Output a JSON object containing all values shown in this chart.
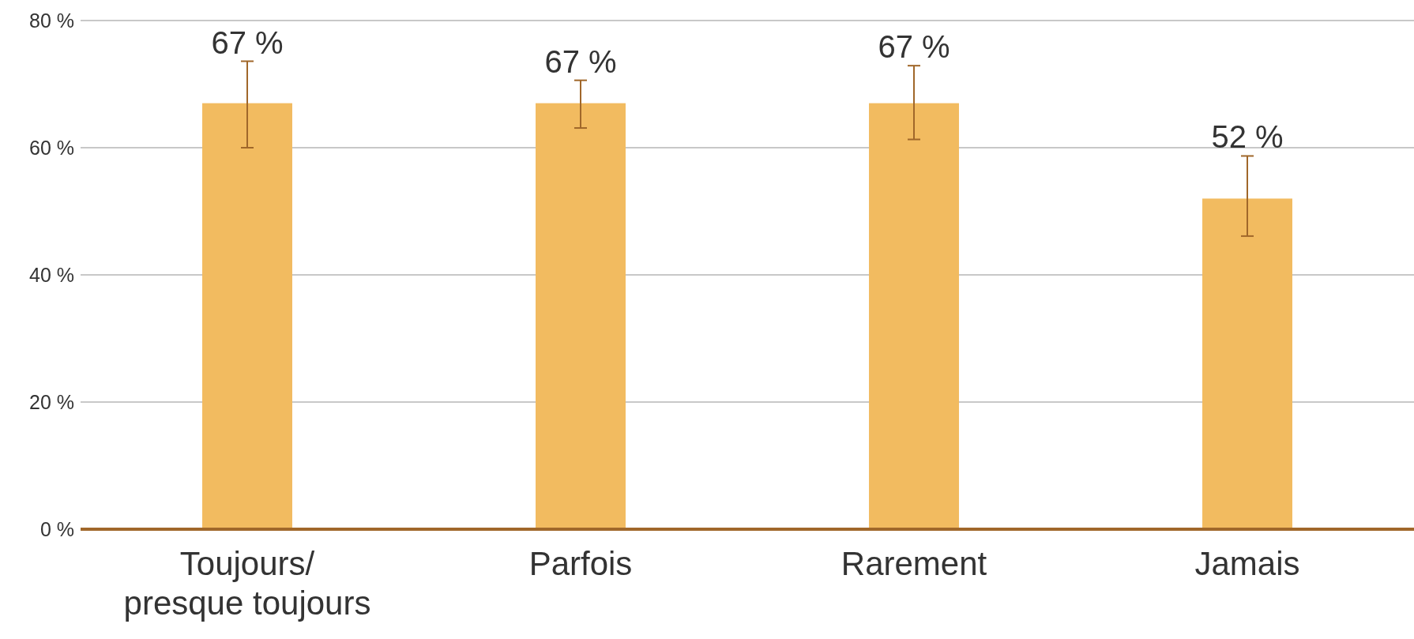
{
  "chart_data": {
    "type": "bar",
    "categories": [
      "Toujours/\npresque toujours",
      "Parfois",
      "Rarement",
      "Jamais"
    ],
    "values": [
      67,
      67,
      67,
      52
    ],
    "errors": [
      [
        60,
        73.6
      ],
      [
        63.1,
        70.6
      ],
      [
        61.3,
        72.9
      ],
      [
        46.1,
        58.7
      ]
    ],
    "value_labels": [
      "67 %",
      "67 %",
      "67 %",
      "52 %"
    ],
    "color": "#f2bb60",
    "ylim": [
      0,
      80
    ],
    "yticks": [
      {
        "value": 0,
        "label": "0 %"
      },
      {
        "value": 20,
        "label": "20 %"
      },
      {
        "value": 40,
        "label": "40 %"
      },
      {
        "value": 60,
        "label": "60 %"
      },
      {
        "value": 80,
        "label": "80 %"
      }
    ],
    "grid": "y"
  }
}
